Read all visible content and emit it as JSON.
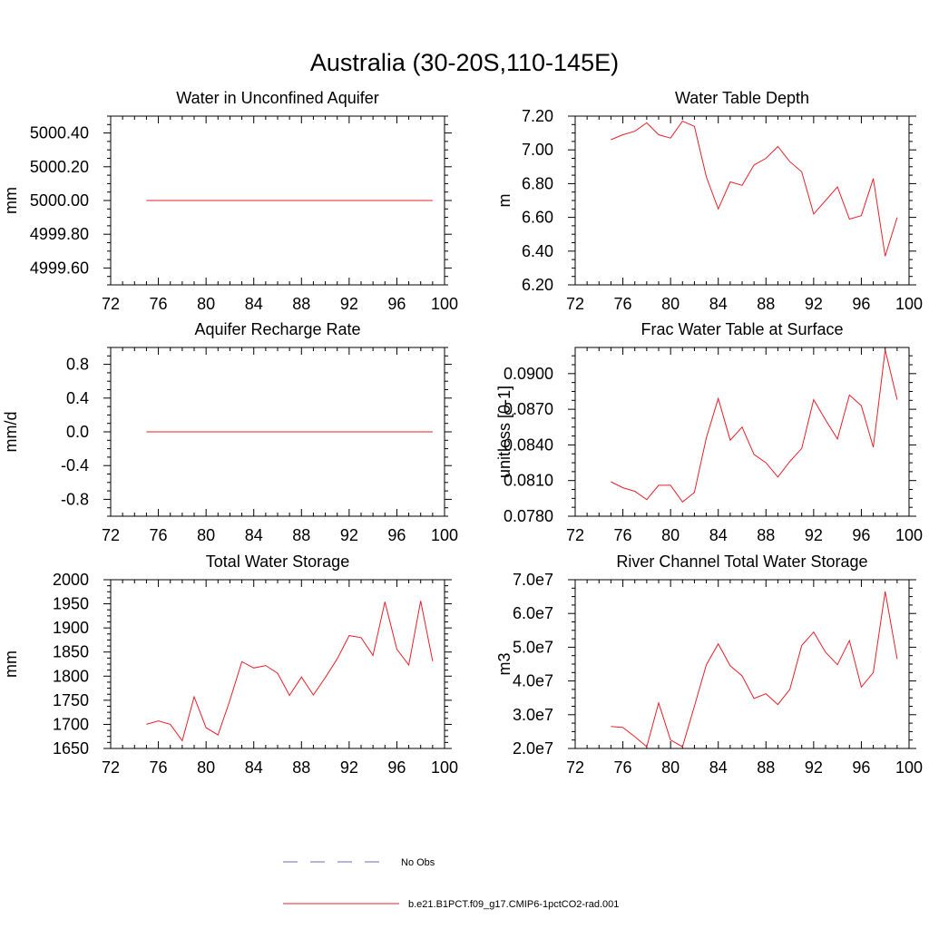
{
  "figure": {
    "title": "Australia (30-20S,110-145E)"
  },
  "legend": {
    "items": [
      {
        "label": "No Obs",
        "color": "#6a6ab8",
        "dash": true
      },
      {
        "label": "b.e21.B1PCT.f09_g17.CMIP6-1pctCO2-rad.001",
        "color": "#e8202a",
        "dash": false
      }
    ]
  },
  "colors": {
    "series": "#e8202a",
    "axis": "#000000"
  },
  "chart_data": [
    {
      "type": "line",
      "title": "Water in Unconfined Aquifer",
      "ylabel": "mm",
      "xlim": [
        72,
        100
      ],
      "ylim": [
        4999.5,
        5000.5
      ],
      "xticks": [
        72,
        76,
        80,
        84,
        88,
        92,
        96,
        100
      ],
      "yticks": [
        4999.6,
        4999.8,
        5000.0,
        5000.2,
        5000.4
      ],
      "ytick_labels": [
        "4999.60",
        "4999.80",
        "5000.00",
        "5000.20",
        "5000.40"
      ],
      "x": [
        75,
        76,
        77,
        78,
        79,
        80,
        81,
        82,
        83,
        84,
        85,
        86,
        87,
        88,
        89,
        90,
        91,
        92,
        93,
        94,
        95,
        96,
        97,
        98,
        99
      ],
      "series": [
        {
          "values": [
            5000,
            5000,
            5000,
            5000,
            5000,
            5000,
            5000,
            5000,
            5000,
            5000,
            5000,
            5000,
            5000,
            5000,
            5000,
            5000,
            5000,
            5000,
            5000,
            5000,
            5000,
            5000,
            5000,
            5000,
            5000
          ]
        }
      ]
    },
    {
      "type": "line",
      "title": "Water Table Depth",
      "ylabel": "m",
      "xlim": [
        72,
        100
      ],
      "ylim": [
        6.2,
        7.2
      ],
      "xticks": [
        72,
        76,
        80,
        84,
        88,
        92,
        96,
        100
      ],
      "yticks": [
        6.2,
        6.4,
        6.6,
        6.8,
        7.0,
        7.2
      ],
      "ytick_labels": [
        "6.20",
        "6.40",
        "6.60",
        "6.80",
        "7.00",
        "7.20"
      ],
      "x": [
        75,
        76,
        77,
        78,
        79,
        80,
        81,
        82,
        83,
        84,
        85,
        86,
        87,
        88,
        89,
        90,
        91,
        92,
        93,
        94,
        95,
        96,
        97,
        98,
        99
      ],
      "series": [
        {
          "values": [
            7.06,
            7.09,
            7.11,
            7.16,
            7.09,
            7.07,
            7.17,
            7.14,
            6.84,
            6.65,
            6.81,
            6.79,
            6.91,
            6.95,
            7.02,
            6.93,
            6.87,
            6.62,
            6.7,
            6.78,
            6.59,
            6.61,
            6.83,
            6.37,
            6.6
          ]
        }
      ]
    },
    {
      "type": "line",
      "title": "Aquifer Recharge Rate",
      "ylabel": "mm/d",
      "xlim": [
        72,
        100
      ],
      "ylim": [
        -1.0,
        1.0
      ],
      "xticks": [
        72,
        76,
        80,
        84,
        88,
        92,
        96,
        100
      ],
      "yticks": [
        -0.8,
        -0.4,
        0.0,
        0.4,
        0.8
      ],
      "ytick_labels": [
        "-0.8",
        "-0.4",
        "0.0",
        "0.4",
        "0.8"
      ],
      "x": [
        75,
        76,
        77,
        78,
        79,
        80,
        81,
        82,
        83,
        84,
        85,
        86,
        87,
        88,
        89,
        90,
        91,
        92,
        93,
        94,
        95,
        96,
        97,
        98,
        99
      ],
      "series": [
        {
          "values": [
            0,
            0,
            0,
            0,
            0,
            0,
            0,
            0,
            0,
            0,
            0,
            0,
            0,
            0,
            0,
            0,
            0,
            0,
            0,
            0,
            0,
            0,
            0,
            0,
            0
          ]
        }
      ]
    },
    {
      "type": "line",
      "title": "Frac Water Table at Surface",
      "ylabel": "unitless [0-1]",
      "xlim": [
        72,
        100
      ],
      "ylim": [
        0.078,
        0.0922
      ],
      "xticks": [
        72,
        76,
        80,
        84,
        88,
        92,
        96,
        100
      ],
      "yticks": [
        0.078,
        0.081,
        0.084,
        0.087,
        0.09
      ],
      "ytick_labels": [
        "0.0780",
        "0.0810",
        "0.0840",
        "0.0870",
        "0.0900"
      ],
      "x": [
        75,
        76,
        77,
        78,
        79,
        80,
        81,
        82,
        83,
        84,
        85,
        86,
        87,
        88,
        89,
        90,
        91,
        92,
        93,
        94,
        95,
        96,
        97,
        98,
        99
      ],
      "series": [
        {
          "values": [
            0.0809,
            0.0804,
            0.0801,
            0.0794,
            0.0806,
            0.0806,
            0.0792,
            0.08,
            0.0846,
            0.0879,
            0.0844,
            0.0855,
            0.0832,
            0.0825,
            0.0813,
            0.0826,
            0.0837,
            0.0878,
            0.0861,
            0.0845,
            0.0882,
            0.0873,
            0.0838,
            0.092,
            0.0878
          ]
        }
      ]
    },
    {
      "type": "line",
      "title": "Total Water Storage",
      "ylabel": "mm",
      "xlim": [
        72,
        100
      ],
      "ylim": [
        1650,
        2000
      ],
      "xticks": [
        72,
        76,
        80,
        84,
        88,
        92,
        96,
        100
      ],
      "yticks": [
        1650,
        1700,
        1750,
        1800,
        1850,
        1900,
        1950,
        2000
      ],
      "ytick_labels": [
        "1650",
        "1700",
        "1750",
        "1800",
        "1850",
        "1900",
        "1950",
        "2000"
      ],
      "x": [
        75,
        76,
        77,
        78,
        79,
        80,
        81,
        82,
        83,
        84,
        85,
        86,
        87,
        88,
        89,
        90,
        91,
        92,
        93,
        94,
        95,
        96,
        97,
        98,
        99
      ],
      "series": [
        {
          "values": [
            1700,
            1707,
            1700,
            1666,
            1757,
            1693,
            1678,
            1750,
            1830,
            1817,
            1822,
            1806,
            1760,
            1798,
            1761,
            1797,
            1836,
            1884,
            1880,
            1843,
            1954,
            1856,
            1823,
            1956,
            1831
          ]
        }
      ]
    },
    {
      "type": "line",
      "title": "River Channel Total Water Storage",
      "ylabel": "m3",
      "xlim": [
        72,
        100
      ],
      "ylim": [
        20000000,
        70000000
      ],
      "xticks": [
        72,
        76,
        80,
        84,
        88,
        92,
        96,
        100
      ],
      "yticks": [
        20000000,
        30000000,
        40000000,
        50000000,
        60000000,
        70000000
      ],
      "ytick_labels": [
        "2.0e7",
        "3.0e7",
        "4.0e7",
        "5.0e7",
        "6.0e7",
        "7.0e7"
      ],
      "x": [
        75,
        76,
        77,
        78,
        79,
        80,
        81,
        82,
        83,
        84,
        85,
        86,
        87,
        88,
        89,
        90,
        91,
        92,
        93,
        94,
        95,
        96,
        97,
        98,
        99
      ],
      "series": [
        {
          "values": [
            26500000,
            26200000,
            23500000,
            20500000,
            33500000,
            22500000,
            20500000,
            32500000,
            44800000,
            51000000,
            44500000,
            41500000,
            34800000,
            36200000,
            33000000,
            37500000,
            50500000,
            54500000,
            48500000,
            44800000,
            52000000,
            38200000,
            42500000,
            66500000,
            46500000
          ]
        }
      ]
    }
  ]
}
